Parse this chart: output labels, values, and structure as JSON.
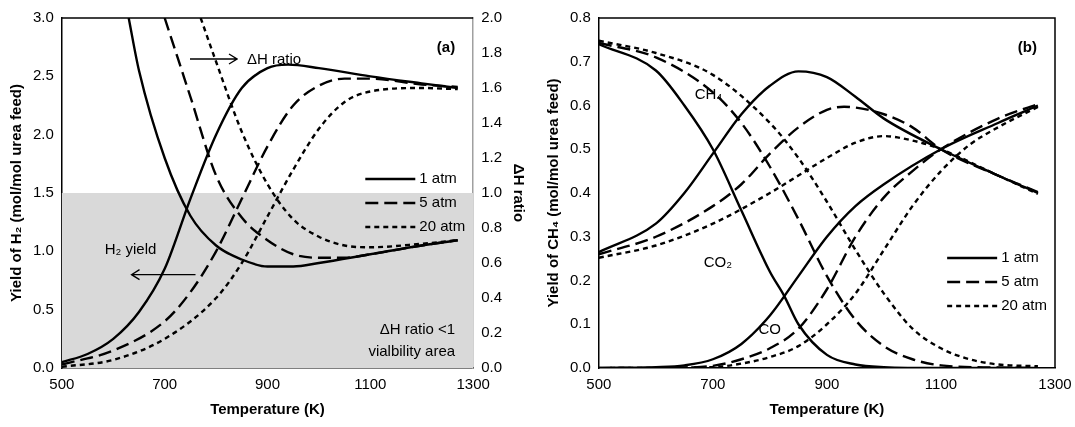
{
  "chart_data": [
    {
      "type": "line",
      "title": "(a)",
      "xlabel": "Temperature (K)",
      "ylabel": "Yield of H₂ (mol/mol urea feed)",
      "y2label": "ΔH ratio",
      "xlim": [
        500,
        1300
      ],
      "xticks": [
        500,
        700,
        900,
        1100,
        1300
      ],
      "ylim": [
        0,
        3
      ],
      "yticks": [
        {
          "value": 0,
          "label": "0.0"
        },
        {
          "value": 0.5,
          "label": "0.5"
        },
        {
          "value": 1,
          "label": "1.0"
        },
        {
          "value": 1.5,
          "label": "1.5"
        },
        {
          "value": 2,
          "label": "2.0"
        },
        {
          "value": 2.5,
          "label": "2.5"
        },
        {
          "value": 3,
          "label": "3.0"
        }
      ],
      "y2lim": [
        0,
        2
      ],
      "y2ticks": [
        {
          "value": 0,
          "label": "0.0"
        },
        {
          "value": 0.2,
          "label": "0.2"
        },
        {
          "value": 0.4,
          "label": "0.4"
        },
        {
          "value": 0.6,
          "label": "0.6"
        },
        {
          "value": 0.8,
          "label": "0.8"
        },
        {
          "value": 1,
          "label": "1.0"
        },
        {
          "value": 1.2,
          "label": "1.2"
        },
        {
          "value": 1.4,
          "label": "1.4"
        },
        {
          "value": 1.6,
          "label": "1.6"
        },
        {
          "value": 1.8,
          "label": "1.8"
        },
        {
          "value": 2,
          "label": "2.0"
        }
      ],
      "legend": "right",
      "marker": "none",
      "series": [
        {
          "name": "1 atm",
          "color": "#000000",
          "line_style": "solid",
          "x": [
            500,
            550,
            600,
            650,
            700,
            750,
            800,
            850,
            900,
            940,
            1000,
            1100,
            1200,
            1270
          ],
          "values": [
            0.05,
            0.12,
            0.25,
            0.48,
            0.85,
            1.45,
            2.0,
            2.4,
            2.57,
            2.6,
            2.57,
            2.5,
            2.44,
            2.4
          ]
        },
        {
          "name": "5 atm",
          "color": "#000000",
          "line_style": "dashed",
          "x": [
            500,
            600,
            700,
            750,
            800,
            850,
            900,
            950,
            1000,
            1050,
            1100,
            1200,
            1270
          ],
          "values": [
            0.03,
            0.15,
            0.4,
            0.65,
            1.0,
            1.45,
            1.9,
            2.25,
            2.42,
            2.48,
            2.48,
            2.43,
            2.41
          ]
        },
        {
          "name": "20 atm",
          "color": "#000000",
          "line_style": "dotted",
          "x": [
            500,
            600,
            700,
            800,
            850,
            900,
            950,
            1000,
            1050,
            1100,
            1200,
            1270
          ],
          "values": [
            0.01,
            0.07,
            0.25,
            0.6,
            0.9,
            1.3,
            1.7,
            2.05,
            2.28,
            2.37,
            2.4,
            2.39
          ]
        },
        {
          "color": "#000000",
          "line_style": "solid",
          "axis": "y2",
          "x": [
            630,
            650,
            700,
            750,
            800,
            850,
            900,
            950,
            1000,
            1100,
            1200,
            1270
          ],
          "values": [
            2.0,
            1.7,
            1.2,
            0.87,
            0.7,
            0.62,
            0.58,
            0.58,
            0.6,
            0.65,
            0.7,
            0.73
          ]
        },
        {
          "color": "#000000",
          "line_style": "dashed",
          "axis": "y2",
          "x": [
            700,
            750,
            800,
            850,
            900,
            950,
            1000,
            1050,
            1100,
            1200,
            1270
          ],
          "values": [
            2.0,
            1.55,
            1.1,
            0.86,
            0.73,
            0.65,
            0.63,
            0.63,
            0.65,
            0.7,
            0.73
          ]
        },
        {
          "color": "#000000",
          "line_style": "dotted",
          "axis": "y2",
          "x": [
            770,
            800,
            850,
            900,
            950,
            1000,
            1050,
            1100,
            1200,
            1270
          ],
          "values": [
            2.0,
            1.75,
            1.35,
            1.05,
            0.85,
            0.75,
            0.7,
            0.69,
            0.71,
            0.73
          ]
        }
      ],
      "bands": [
        {
          "axis": "y2",
          "from": 0,
          "to": 1,
          "label": "ΔH ratio <1 vialbility area",
          "color": "#d9d9d9"
        }
      ],
      "annotations": [
        "ΔH ratio",
        {
          "text": "H₂ yield",
          "x": 760,
          "y": 0.8
        }
      ]
    },
    {
      "type": "line",
      "title": "(b)",
      "xlabel": "Temperature (K)",
      "ylabel": "Yield of CH₄ (mol/mol urea feed)",
      "xlim": [
        500,
        1300
      ],
      "xticks": [
        500,
        700,
        900,
        1100,
        1300
      ],
      "ylim": [
        0,
        0.8
      ],
      "yticks": [
        {
          "value": 0,
          "label": "0.0"
        },
        0.1,
        0.2,
        0.3,
        0.4,
        0.5,
        0.6,
        0.7,
        0.8
      ],
      "legend": "bottom right",
      "marker": "none",
      "series": [
        {
          "name": "1 atm",
          "color": "#000000",
          "line_style": "solid",
          "x": [
            500,
            600,
            650,
            700,
            750,
            800,
            825,
            850,
            900,
            950,
            1000,
            1100,
            1270
          ],
          "values": [
            0.74,
            0.68,
            0.6,
            0.5,
            0.36,
            0.22,
            0.165,
            0.1,
            0.03,
            0.008,
            0.002,
            0,
            0
          ]
        },
        {
          "name": "5 atm",
          "color": "#000000",
          "line_style": "dashed",
          "x": [
            500,
            600,
            700,
            750,
            800,
            850,
            900,
            950,
            1000,
            1050,
            1100,
            1200,
            1270
          ],
          "values": [
            0.743,
            0.71,
            0.63,
            0.56,
            0.46,
            0.34,
            0.21,
            0.11,
            0.05,
            0.02,
            0.006,
            0.001,
            0
          ]
        },
        {
          "name": "20 atm",
          "color": "#000000",
          "line_style": "dotted",
          "x": [
            500,
            600,
            700,
            800,
            850,
            900,
            950,
            1000,
            1050,
            1100,
            1150,
            1200,
            1270
          ],
          "values": [
            0.748,
            0.72,
            0.67,
            0.56,
            0.48,
            0.38,
            0.27,
            0.17,
            0.09,
            0.045,
            0.02,
            0.008,
            0.004
          ]
        },
        {
          "color": "#000000",
          "line_style": "solid",
          "x": [
            500,
            600,
            650,
            700,
            750,
            800,
            850,
            900,
            950,
            1000,
            1100,
            1200,
            1270
          ],
          "values": [
            0.265,
            0.33,
            0.4,
            0.49,
            0.58,
            0.645,
            0.678,
            0.665,
            0.62,
            0.57,
            0.5,
            0.44,
            0.4
          ]
        },
        {
          "color": "#000000",
          "line_style": "dashed",
          "x": [
            500,
            600,
            700,
            750,
            800,
            850,
            900,
            930,
            1000,
            1050,
            1100,
            1200,
            1270
          ],
          "values": [
            0.26,
            0.3,
            0.37,
            0.42,
            0.49,
            0.55,
            0.59,
            0.597,
            0.58,
            0.55,
            0.5,
            0.44,
            0.402
          ]
        },
        {
          "color": "#000000",
          "line_style": "dotted",
          "x": [
            500,
            600,
            700,
            800,
            850,
            900,
            950,
            1000,
            1050,
            1100,
            1200,
            1270
          ],
          "values": [
            0.252,
            0.28,
            0.33,
            0.4,
            0.44,
            0.48,
            0.515,
            0.53,
            0.52,
            0.5,
            0.44,
            0.398
          ]
        },
        {
          "color": "#000000",
          "line_style": "solid",
          "x": [
            500,
            600,
            650,
            700,
            750,
            800,
            850,
            900,
            950,
            1000,
            1100,
            1200,
            1270
          ],
          "values": [
            0,
            0.002,
            0.006,
            0.02,
            0.055,
            0.12,
            0.21,
            0.3,
            0.37,
            0.42,
            0.5,
            0.56,
            0.6
          ]
        },
        {
          "color": "#000000",
          "line_style": "dashed",
          "x": [
            500,
            650,
            700,
            750,
            800,
            850,
            900,
            950,
            1000,
            1050,
            1100,
            1200,
            1270
          ],
          "values": [
            0,
            0.001,
            0.005,
            0.02,
            0.045,
            0.09,
            0.18,
            0.3,
            0.39,
            0.45,
            0.5,
            0.57,
            0.603
          ]
        },
        {
          "color": "#000000",
          "line_style": "dotted",
          "x": [
            520,
            700,
            750,
            800,
            850,
            900,
            950,
            1000,
            1050,
            1100,
            1150,
            1200,
            1270
          ],
          "values": [
            0,
            0.002,
            0.01,
            0.025,
            0.05,
            0.1,
            0.17,
            0.27,
            0.37,
            0.45,
            0.51,
            0.55,
            0.597
          ]
        }
      ],
      "annotations": [
        "CH₄",
        "CO₂",
        "CO"
      ]
    }
  ]
}
